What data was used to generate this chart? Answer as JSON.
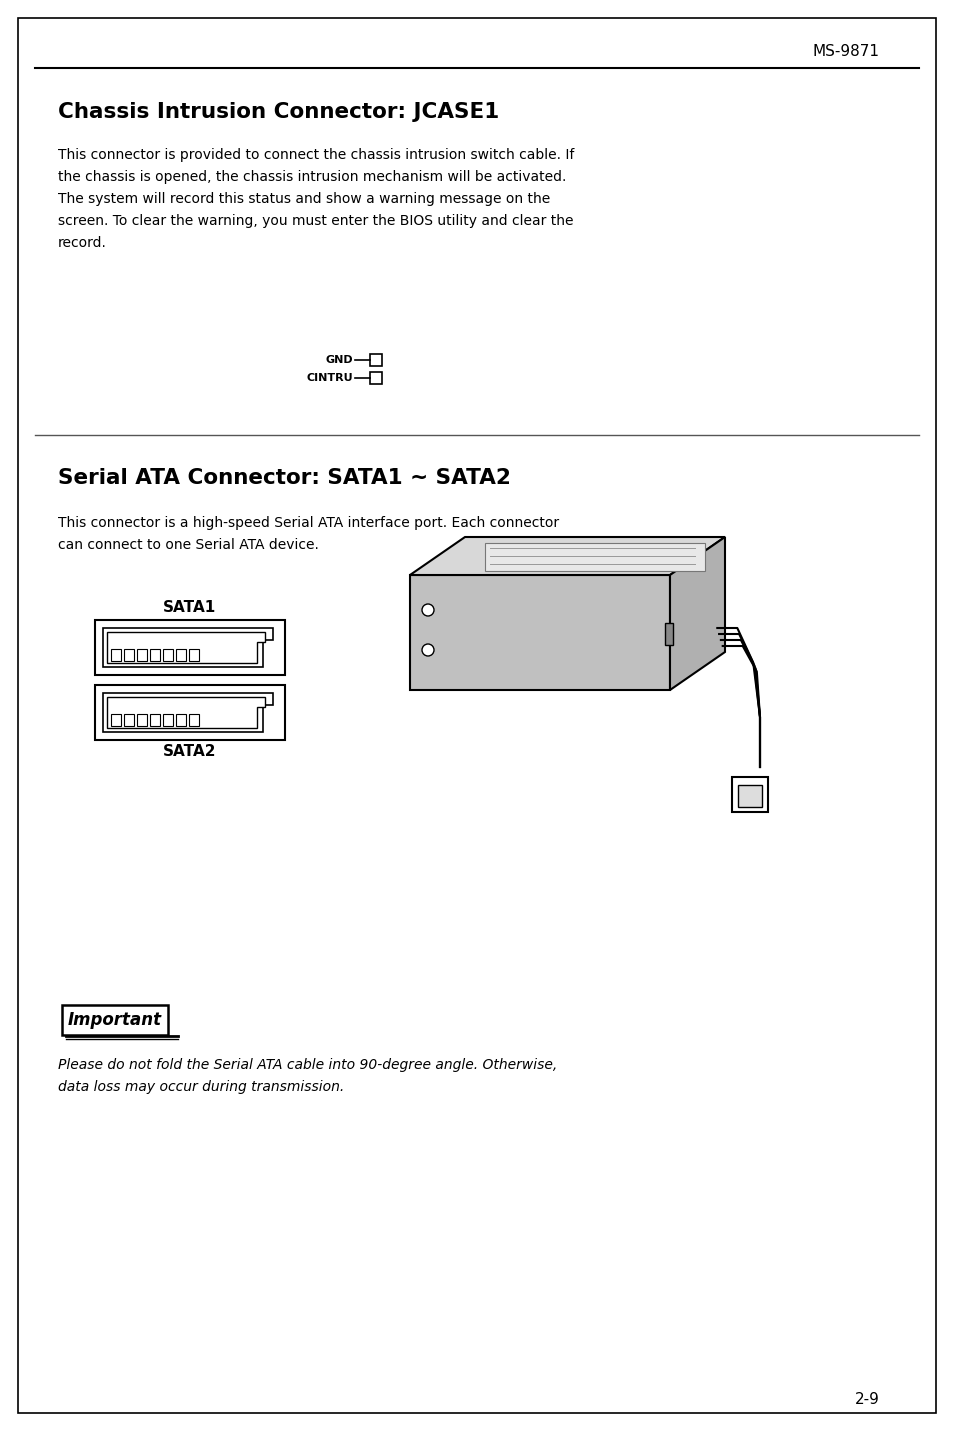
{
  "page_header": "MS-9871",
  "page_number": "2-9",
  "background_color": "#ffffff",
  "border_color": "#000000",
  "section1_title": "Chassis Intrusion Connector: JCASE1",
  "section1_body": "This connector is provided to connect the chassis intrusion switch cable. If\nthe chassis is opened, the chassis intrusion mechanism will be activated.\nThe system will record this status and show a warning message on the\nscreen. To clear the warning, you must enter the BIOS utility and clear the\nrecord.",
  "connector_labels": [
    "GND",
    "CINTRU"
  ],
  "section2_title": "Serial ATA Connector: SATA1 ~ SATA2",
  "section2_body": "This connector is a high-speed Serial ATA interface port. Each connector\ncan connect to one Serial ATA device.",
  "sata1_label": "SATA1",
  "sata2_label": "SATA2",
  "important_text": "Important",
  "note_text": "Please do not fold the Serial ATA cable into 90-degree angle. Otherwise,\ndata loss may occur during transmission.",
  "text_color": "#000000",
  "gray_color": "#aaaaaa",
  "light_gray": "#cccccc",
  "mid_gray": "#888888"
}
